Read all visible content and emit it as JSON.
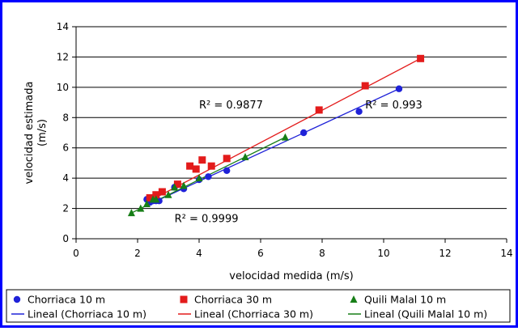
{
  "colors": {
    "border": "#0000FF",
    "background": "#FFFFFF",
    "gridline": "#000000",
    "chorriaca10": "#1F22D8",
    "chorriaca30": "#E31B1B",
    "quili10": "#177E17"
  },
  "chart_data": {
    "type": "scatter",
    "title": "",
    "xlabel": "velocidad medida (m/s)",
    "ylabel_lines": [
      "velocidad estimada",
      "(m/s)"
    ],
    "xlim": [
      0,
      14
    ],
    "ylim": [
      0,
      14
    ],
    "xticks": [
      0,
      2,
      4,
      6,
      8,
      10,
      12,
      14
    ],
    "yticks": [
      0,
      2,
      4,
      6,
      8,
      10,
      12,
      14
    ],
    "horizontal_grid": true,
    "vertical_grid": false,
    "legend_position": "bottom",
    "series": [
      {
        "name": "Chorriaca 10 m",
        "marker": "circle",
        "color_key": "chorriaca10",
        "points": [
          [
            2.3,
            2.6
          ],
          [
            2.4,
            2.4
          ],
          [
            2.5,
            2.5
          ],
          [
            2.6,
            2.5
          ],
          [
            2.7,
            2.5
          ],
          [
            3.2,
            3.4
          ],
          [
            3.5,
            3.3
          ],
          [
            4.0,
            3.9
          ],
          [
            4.3,
            4.1
          ],
          [
            4.9,
            4.5
          ],
          [
            7.4,
            7.0
          ],
          [
            9.2,
            8.4
          ],
          [
            10.5,
            9.9
          ]
        ]
      },
      {
        "name": "Chorriaca 30 m",
        "marker": "square",
        "color_key": "chorriaca30",
        "points": [
          [
            2.4,
            2.7
          ],
          [
            2.6,
            2.9
          ],
          [
            2.8,
            3.1
          ],
          [
            3.3,
            3.6
          ],
          [
            3.7,
            4.8
          ],
          [
            3.9,
            4.6
          ],
          [
            4.1,
            5.2
          ],
          [
            4.4,
            4.8
          ],
          [
            4.9,
            5.3
          ],
          [
            7.9,
            8.5
          ],
          [
            9.4,
            10.1
          ],
          [
            11.2,
            11.9
          ]
        ]
      },
      {
        "name": "Quili Malal 10 m",
        "marker": "triangle",
        "color_key": "quili10",
        "points": [
          [
            1.8,
            1.7
          ],
          [
            2.1,
            2.0
          ],
          [
            2.3,
            2.3
          ],
          [
            2.5,
            2.6
          ],
          [
            2.6,
            2.6
          ],
          [
            3.0,
            2.9
          ],
          [
            3.2,
            3.4
          ],
          [
            3.5,
            3.5
          ],
          [
            4.0,
            4.0
          ],
          [
            5.5,
            5.4
          ],
          [
            6.8,
            6.7
          ]
        ]
      }
    ],
    "trendlines": [
      {
        "name": "Lineal (Chorriaca 10 m)",
        "color_key": "chorriaca10",
        "from": [
          2.3,
          2.2
        ],
        "to": [
          10.5,
          9.9
        ]
      },
      {
        "name": "Lineal (Chorriaca 30 m)",
        "color_key": "chorriaca30",
        "from": [
          2.3,
          2.4
        ],
        "to": [
          11.2,
          11.9
        ]
      },
      {
        "name": "Lineal (Quili Malal 10 m)",
        "color_key": "quili10",
        "from": [
          1.8,
          1.7
        ],
        "to": [
          6.8,
          6.7
        ]
      }
    ],
    "annotations": [
      {
        "text": "R² = 0.9877",
        "color_key": "chorriaca30",
        "at": [
          4.0,
          8.6
        ]
      },
      {
        "text": "R² = 0.993",
        "color_key": "chorriaca10",
        "at": [
          9.4,
          8.6
        ]
      },
      {
        "text": "R² = 0.9999",
        "color_key": "quili10",
        "at": [
          3.2,
          1.1
        ]
      }
    ]
  }
}
